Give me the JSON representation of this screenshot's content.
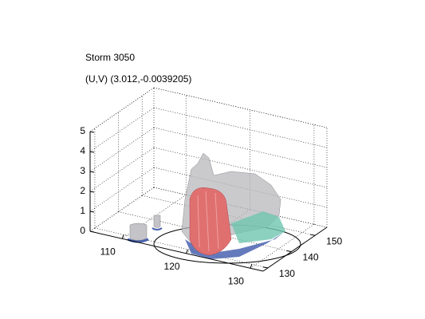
{
  "chart_data": {
    "type": "isosurface",
    "title": "Storm 3050",
    "subtitle": "(U,V) (3.012,-0.0039205)",
    "xlim": [
      105,
      132
    ],
    "xticks": [
      110,
      120,
      130
    ],
    "ylim": [
      128,
      155
    ],
    "yticks": [
      130,
      140,
      150
    ],
    "zlim": [
      0,
      5
    ],
    "zticks": [
      0,
      1,
      2,
      3,
      4,
      5
    ],
    "grid": true
  }
}
